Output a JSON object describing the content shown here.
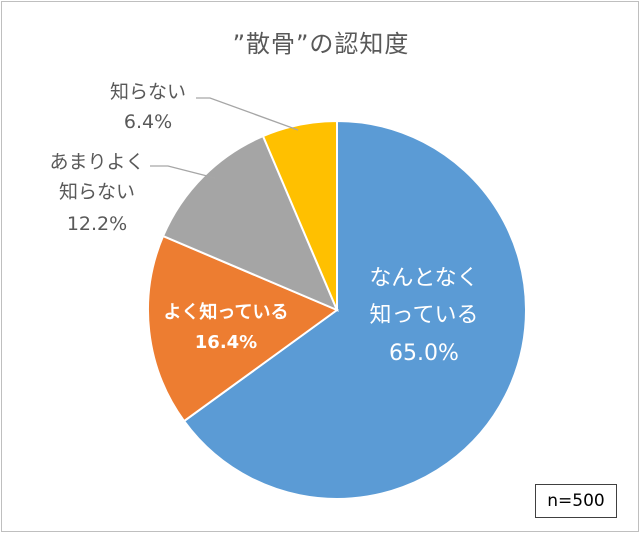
{
  "chart_data": {
    "type": "pie",
    "title": "”散骨”の認知度",
    "start_angle_deg": 0,
    "direction": "clockwise",
    "slices": [
      {
        "label_lines": [
          "なんとなく",
          "知っている"
        ],
        "value_label": "65.0%",
        "value": 65.0,
        "color": "#5b9bd5"
      },
      {
        "label_lines": [
          "よく知っている"
        ],
        "value_label": "16.4%",
        "value": 16.4,
        "color": "#ed7d31"
      },
      {
        "label_lines": [
          "あまりよく",
          "知らない"
        ],
        "value_label": "12.2%",
        "value": 12.2,
        "color": "#a5a5a5"
      },
      {
        "label_lines": [
          "知らない"
        ],
        "value_label": "6.4%",
        "value": 6.4,
        "color": "#ffc000"
      }
    ],
    "sample_note": "n=500"
  }
}
